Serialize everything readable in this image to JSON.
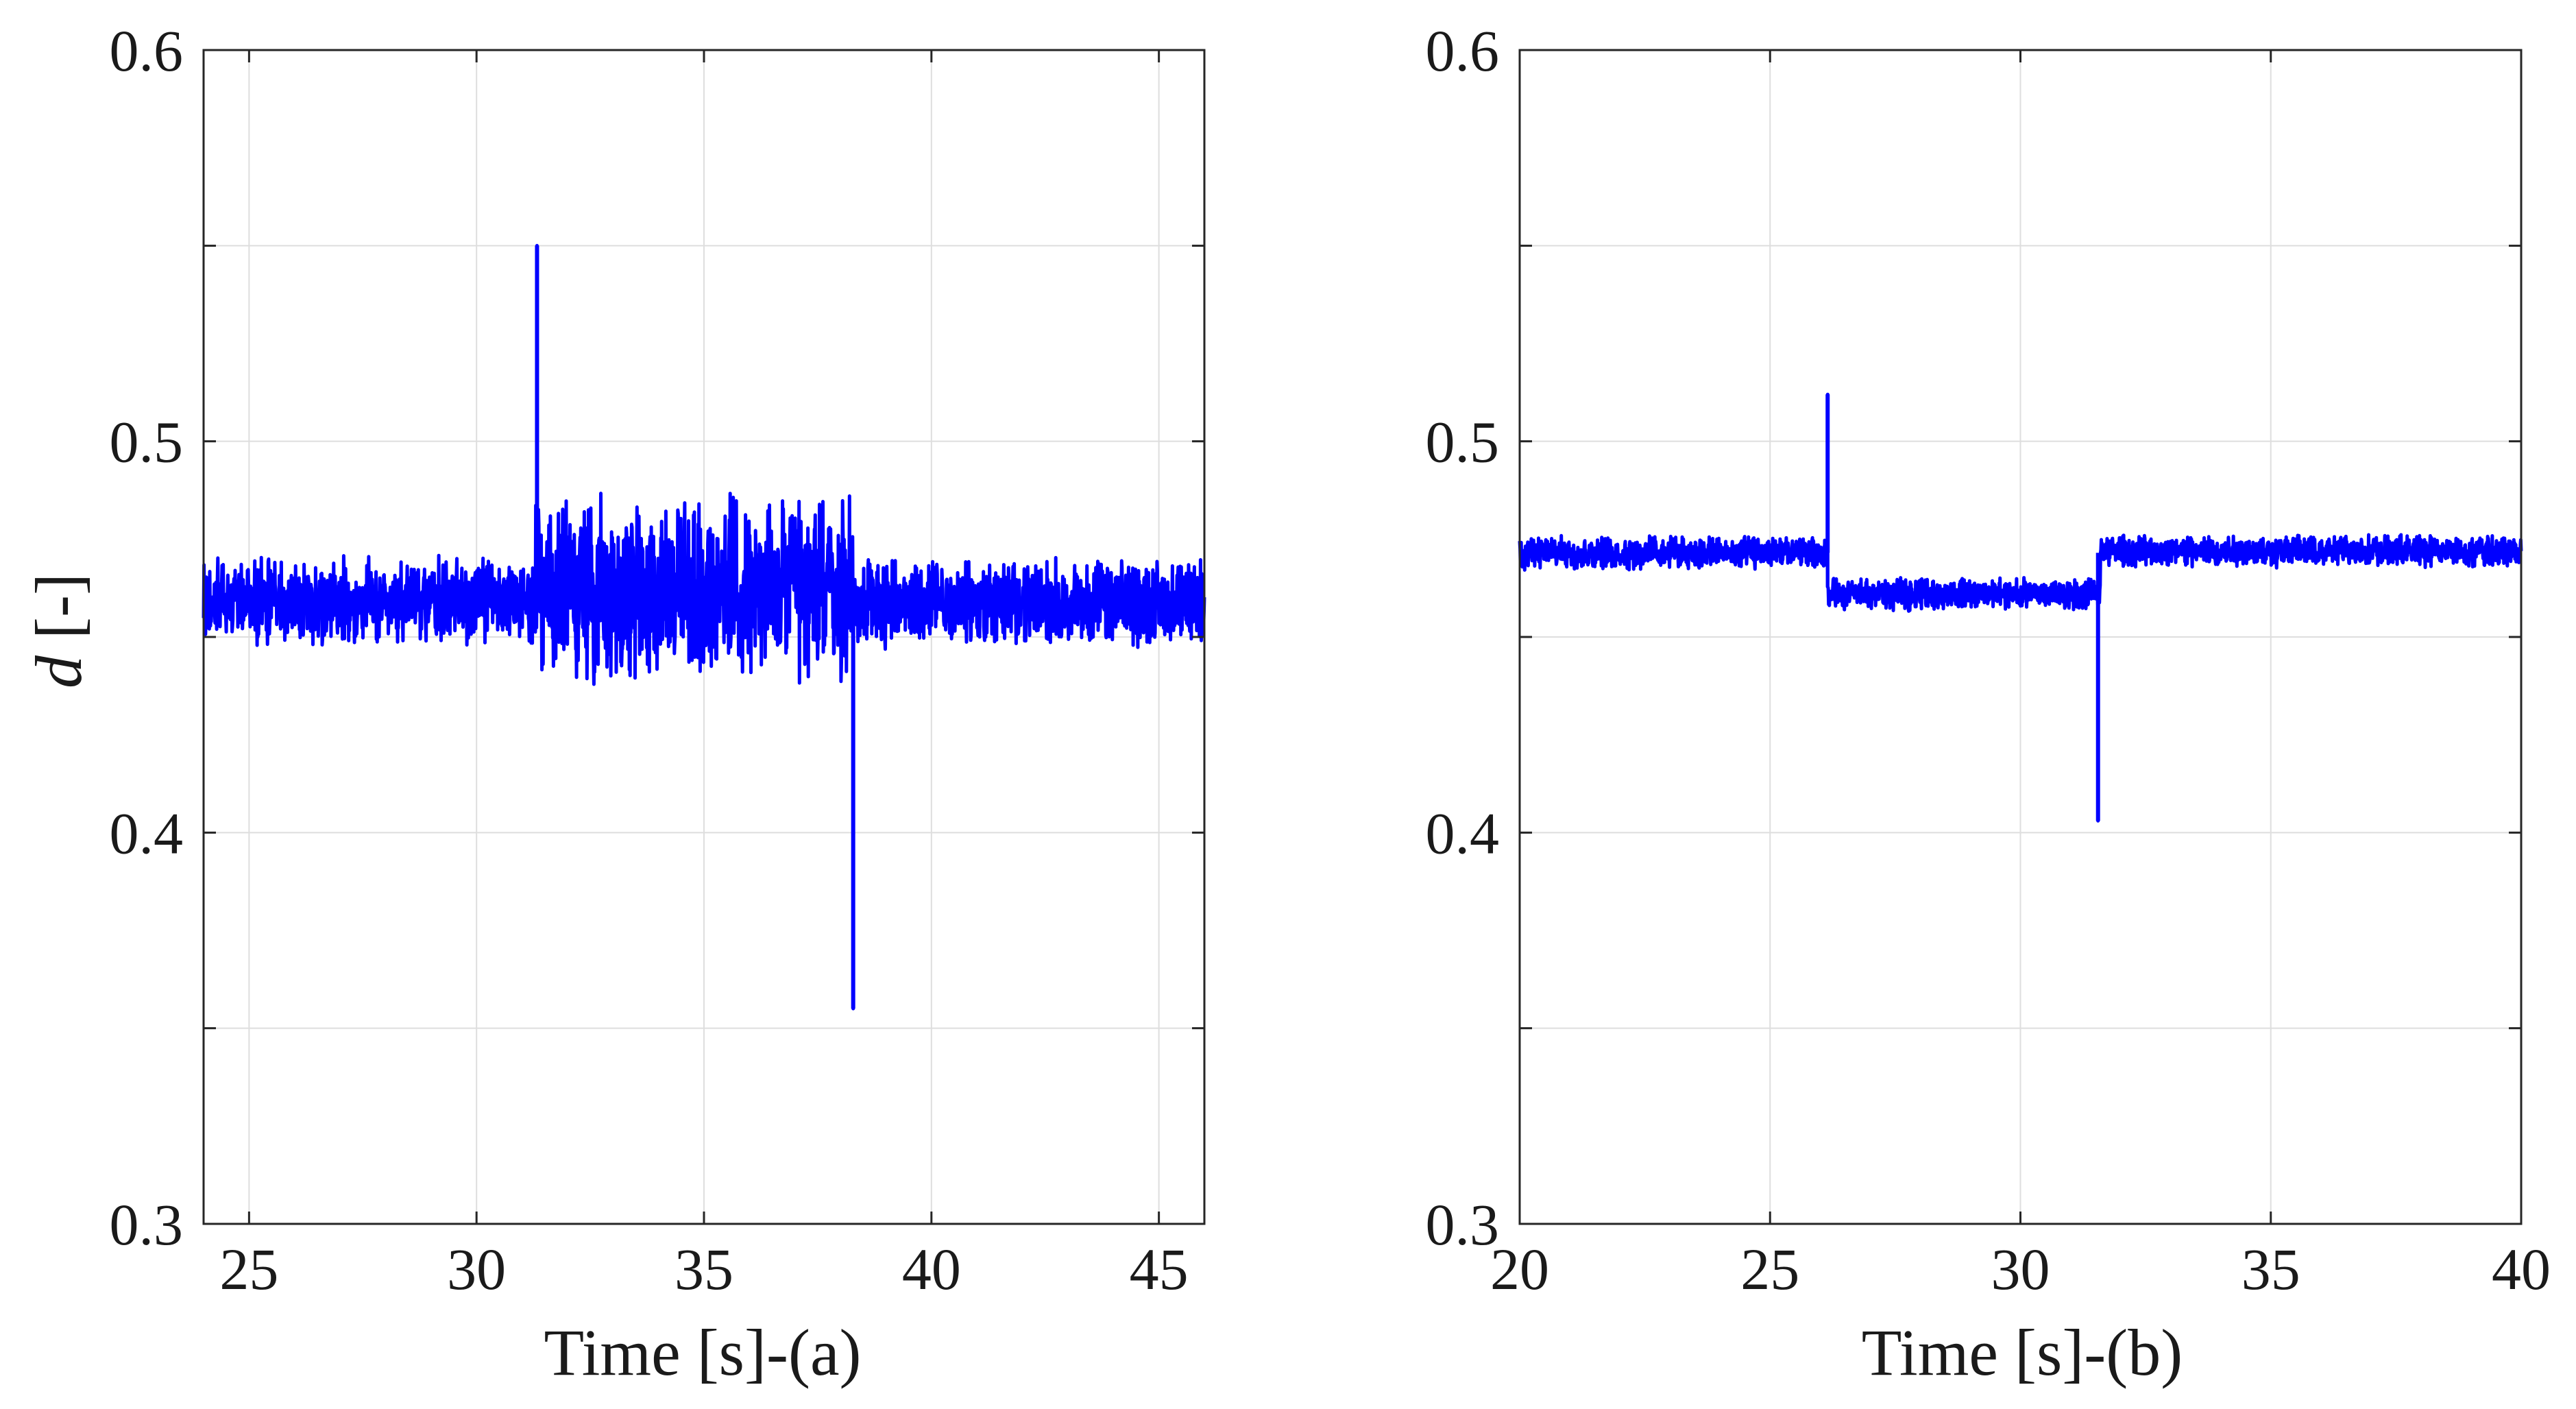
{
  "figure": {
    "shared_ylabel_var": "d",
    "shared_ylabel_unit": " [-]"
  },
  "colors": {
    "line": "#0000ff",
    "grid": "#dedede",
    "axis": "#262626",
    "background": "#ffffff"
  },
  "chart_data": [
    {
      "type": "line",
      "panel": "a",
      "xlabel": "Time [s]-(a)",
      "ylabel": "d [-]",
      "xlim": [
        24,
        46
      ],
      "ylim": [
        0.3,
        0.6
      ],
      "xticks": [
        25,
        30,
        35,
        40,
        45
      ],
      "yticks": [
        0.3,
        0.35,
        0.4,
        0.45,
        0.5,
        0.55,
        0.6
      ],
      "ytick_labels": [
        "0.3",
        "",
        "0.4",
        "",
        "0.5",
        "",
        "0.6"
      ],
      "grid": true,
      "series": [
        {
          "name": "d",
          "segments": [
            {
              "x_start": 24.0,
              "x_end": 31.3,
              "mean": 0.459,
              "band": 0.012
            },
            {
              "x_start": 31.3,
              "x_end": 38.3,
              "mean": 0.4625,
              "band": 0.026
            },
            {
              "x_start": 38.3,
              "x_end": 46.0,
              "mean": 0.4585,
              "band": 0.012
            }
          ],
          "spikes": [
            {
              "x": 31.33,
              "peak": 0.55
            },
            {
              "x": 38.28,
              "peak": 0.355
            }
          ]
        }
      ]
    },
    {
      "type": "line",
      "panel": "b",
      "xlabel": "Time [s]-(b)",
      "ylabel": "",
      "xlim": [
        20,
        40
      ],
      "ylim": [
        0.3,
        0.6
      ],
      "xticks": [
        20,
        25,
        30,
        35,
        40
      ],
      "yticks": [
        0.3,
        0.35,
        0.4,
        0.45,
        0.5,
        0.55,
        0.6
      ],
      "ytick_labels": [
        "0.3",
        "",
        "0.4",
        "",
        "0.5",
        "",
        "0.6"
      ],
      "grid": true,
      "series": [
        {
          "name": "d",
          "segments": [
            {
              "x_start": 20.0,
              "x_end": 26.15,
              "mean": 0.4715,
              "band": 0.0045
            },
            {
              "x_start": 26.15,
              "x_end": 31.6,
              "mean": 0.461,
              "band": 0.0045
            },
            {
              "x_start": 31.6,
              "x_end": 40.0,
              "mean": 0.472,
              "band": 0.0045
            }
          ],
          "spikes": [
            {
              "x": 26.15,
              "peak": 0.512
            },
            {
              "x": 31.55,
              "peak": 0.403
            }
          ]
        }
      ]
    }
  ]
}
